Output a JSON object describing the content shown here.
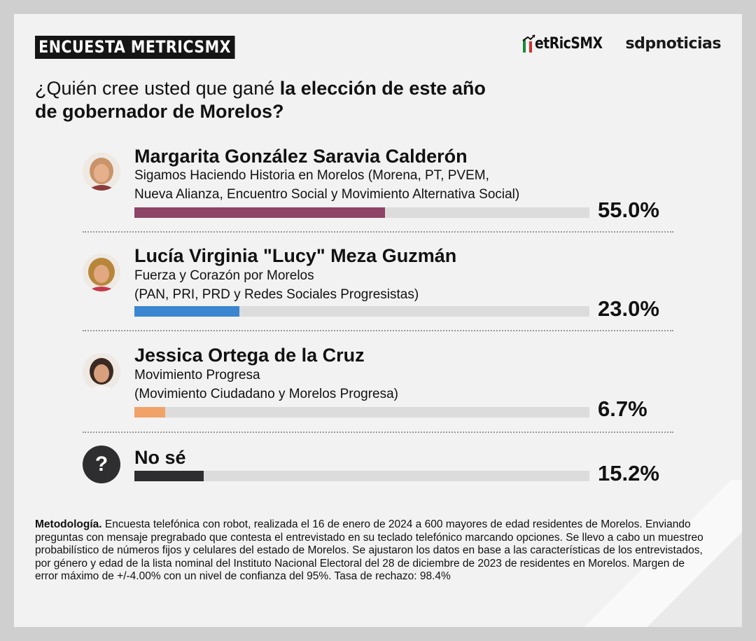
{
  "header": {
    "survey_label": "ENCUESTA METRICSMX",
    "logo_metrics": "etRicSMX",
    "logo_sdp": "sdpnoticias",
    "flag_colors": [
      "#1a8a3a",
      "#ffffff",
      "#d32f2f"
    ]
  },
  "question": {
    "normal": "¿Quién cree usted que gané ",
    "bold_line1": "la elección de este año",
    "bold_line2": "de gobernador de Morelos?"
  },
  "chart_data": {
    "type": "bar",
    "orientation": "horizontal",
    "title": "¿Quién cree usted que gané la elección de este año de gobernador de Morelos?",
    "xlim": [
      0,
      100
    ],
    "unit": "%",
    "categories": [
      "Margarita González Saravia Calderón",
      "Lucía Virginia \"Lucy\" Meza Guzmán",
      "Jessica Ortega de la Cruz",
      "No sé"
    ],
    "values": [
      55.0,
      23.0,
      6.7,
      15.2
    ],
    "labels": [
      "55.0%",
      "23.0%",
      "6.7%",
      "15.2%"
    ],
    "colors": [
      "#8e4466",
      "#3a86d0",
      "#f0a267",
      "#2e2e30"
    ]
  },
  "candidates": [
    {
      "name": "Margarita González Saravia Calderón",
      "party_line1": "Sigamos Haciendo Historia en Morelos (Morena, PT, PVEM,",
      "party_line2": "Nueva Alianza, Encuentro Social y Movimiento Alternativa Social)",
      "pct_label": "55.0%"
    },
    {
      "name": "Lucía Virginia \"Lucy\" Meza Guzmán",
      "party_line1": "Fuerza y Corazón por Morelos",
      "party_line2": "(PAN, PRI, PRD y Redes Sociales Progresistas)",
      "pct_label": "23.0%"
    },
    {
      "name": "Jessica Ortega de la Cruz",
      "party_line1": "Movimiento Progresa",
      "party_line2": "(Movimiento Ciudadano y Morelos Progresa)",
      "pct_label": "6.7%"
    },
    {
      "name": "No sé",
      "icon_glyph": "?",
      "pct_label": "15.2%"
    }
  ],
  "methodology": {
    "label": "Metodología.",
    "text": " Encuesta telefónica con robot, realizada el 16 de enero de 2024 a 600 mayores de edad residentes de Morelos. Enviando preguntas con mensaje pregrabado que contesta el entrevistado en su teclado telefónico marcando opciones. Se llevo a cabo un muestreo probabilístico de números fijos y celulares del estado de Morelos. Se ajustaron los datos en base a las características de los entrevistados, por género y edad de la lista nominal del Instituto Nacional Electoral del 28 de diciembre de 2023 de residentes en Morelos. Margen de error máximo de +/-4.00% con un nivel de confianza del 95%. Tasa de rechazo: 98.4%"
  }
}
